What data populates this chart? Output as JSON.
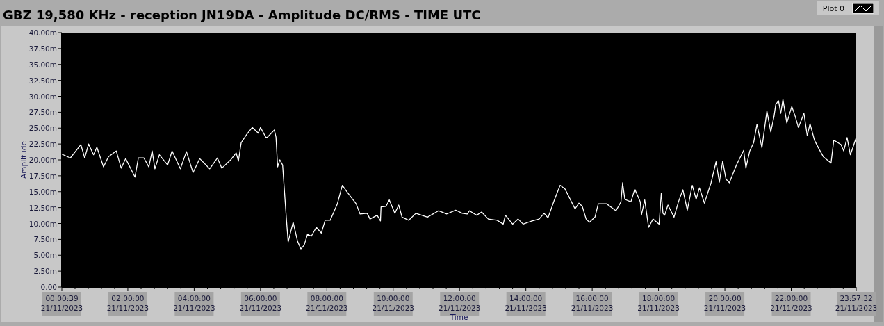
{
  "chart_data": {
    "type": "line",
    "title": "GBZ  19,580 KHz - reception JN19DA -  Amplitude DC/RMS   - TIME UTC",
    "xlabel": "Time",
    "ylabel": "Amplitude",
    "legend": "top right",
    "grid": false,
    "xlim": [
      "2023-11-21T00:00:39",
      "2023-11-21T23:57:32"
    ],
    "ylim": [
      0,
      40
    ],
    "xticks": [
      {
        "value": "2023-11-21T00:00:39",
        "label": "00:00:39\n21/11/2023"
      },
      {
        "value": "2023-11-21T02:00",
        "label": "02:00:00\n21/11/2023"
      },
      {
        "value": "2023-11-21T04:00",
        "label": "04:00:00\n21/11/2023"
      },
      {
        "value": "2023-11-21T06:00",
        "label": "06:00:00\n21/11/2023"
      },
      {
        "value": "2023-11-21T08:00",
        "label": "08:00:00\n21/11/2023"
      },
      {
        "value": "2023-11-21T10:00",
        "label": "10:00:00\n21/11/2023"
      },
      {
        "value": "2023-11-21T12:00",
        "label": "12:00:00\n21/11/2023"
      },
      {
        "value": "2023-11-21T14:00",
        "label": "14:00:00\n21/11/2023"
      },
      {
        "value": "2023-11-21T16:00",
        "label": "16:00:00\n21/11/2023"
      },
      {
        "value": "2023-11-21T18:00",
        "label": "18:00:00\n21/11/2023"
      },
      {
        "value": "2023-11-21T20:00",
        "label": "20:00:00\n21/11/2023"
      },
      {
        "value": "2023-11-21T22:00",
        "label": "22:00:00\n21/11/2023"
      },
      {
        "value": "2023-11-21T23:57:32",
        "label": "23:57:32\n21/11/2023"
      }
    ],
    "yticks": [
      {
        "value": 0,
        "label": "0.00"
      },
      {
        "value": 2.5,
        "label": "2.50m"
      },
      {
        "value": 5,
        "label": "5.00m"
      },
      {
        "value": 7.5,
        "label": "7.50m"
      },
      {
        "value": 10,
        "label": "10.00m"
      },
      {
        "value": 12.5,
        "label": "12.50m"
      },
      {
        "value": 15,
        "label": "15.00m"
      },
      {
        "value": 17.5,
        "label": "17.50m"
      },
      {
        "value": 20,
        "label": "20.00m"
      },
      {
        "value": 22.5,
        "label": "22.50m"
      },
      {
        "value": 25,
        "label": "25.00m"
      },
      {
        "value": 27.5,
        "label": "27.50m"
      },
      {
        "value": 30,
        "label": "30.00m"
      },
      {
        "value": 32.5,
        "label": "32.50m"
      },
      {
        "value": 35,
        "label": "35.00m"
      },
      {
        "value": 37.5,
        "label": "37.50m"
      },
      {
        "value": 40,
        "label": "40.00m"
      }
    ],
    "series": [
      {
        "name": "Plot 0",
        "color": "#ffffff",
        "x": [
          "2023-11-21T00:00:39",
          "2023-11-21T00:16",
          "2023-11-21T00:35",
          "2023-11-21T00:42",
          "2023-11-21T00:49",
          "2023-11-21T00:58",
          "2023-11-21T01:04",
          "2023-11-21T01:16",
          "2023-11-21T01:25",
          "2023-11-21T01:39",
          "2023-11-21T01:48",
          "2023-11-21T01:56",
          "2023-11-21T02:13",
          "2023-11-21T02:19",
          "2023-11-21T02:29",
          "2023-11-21T02:38",
          "2023-11-21T02:44",
          "2023-11-21T02:49",
          "2023-11-21T02:57",
          "2023-11-21T03:12",
          "2023-11-21T03:20",
          "2023-11-21T03:35",
          "2023-11-21T03:46",
          "2023-11-21T03:58",
          "2023-11-21T04:10",
          "2023-11-21T04:28",
          "2023-11-21T04:42",
          "2023-11-21T04:50",
          "2023-11-21T05:06",
          "2023-11-21T05:16",
          "2023-11-21T05:20",
          "2023-11-21T05:25",
          "2023-11-21T05:35",
          "2023-11-21T05:45",
          "2023-11-21T05:56",
          "2023-11-21T06:00",
          "2023-11-21T06:10",
          "2023-11-21T06:13",
          "2023-11-21T06:25",
          "2023-11-21T06:28",
          "2023-11-21T06:31",
          "2023-11-21T06:35",
          "2023-11-21T06:40",
          "2023-11-21T06:47",
          "2023-11-21T06:50",
          "2023-11-21T06:59",
          "2023-11-21T07:07",
          "2023-11-21T07:13",
          "2023-11-21T07:19",
          "2023-11-21T07:25",
          "2023-11-21T07:32",
          "2023-11-21T07:41",
          "2023-11-21T07:50",
          "2023-11-21T07:57",
          "2023-11-21T08:06",
          "2023-11-21T08:19",
          "2023-11-21T08:28",
          "2023-11-21T08:37",
          "2023-11-21T08:53",
          "2023-11-21T09:00",
          "2023-11-21T09:13",
          "2023-11-21T09:18",
          "2023-11-21T09:31",
          "2023-11-21T09:37",
          "2023-11-21T09:38",
          "2023-11-21T09:47",
          "2023-11-21T09:53",
          "2023-11-21T10:03",
          "2023-11-21T10:10",
          "2023-11-21T10:16",
          "2023-11-21T10:28",
          "2023-11-21T10:41",
          "2023-11-21T11:02",
          "2023-11-21T11:22",
          "2023-11-21T11:37",
          "2023-11-21T11:53",
          "2023-11-21T12:05",
          "2023-11-21T12:14",
          "2023-11-21T12:18",
          "2023-11-21T12:31",
          "2023-11-21T12:40",
          "2023-11-21T12:52",
          "2023-11-21T13:08",
          "2023-11-21T13:19",
          "2023-11-21T13:23",
          "2023-11-21T13:36",
          "2023-11-21T13:46",
          "2023-11-21T13:55",
          "2023-11-21T14:11",
          "2023-11-21T14:24",
          "2023-11-21T14:33",
          "2023-11-21T14:40",
          "2023-11-21T14:52",
          "2023-11-21T15:02",
          "2023-11-21T15:11",
          "2023-11-21T15:19",
          "2023-11-21T15:29",
          "2023-11-21T15:36",
          "2023-11-21T15:42",
          "2023-11-21T15:49",
          "2023-11-21T15:55",
          "2023-11-21T16:05",
          "2023-11-21T16:11",
          "2023-11-21T16:26",
          "2023-11-21T16:43",
          "2023-11-21T16:52",
          "2023-11-21T16:55",
          "2023-11-21T16:59",
          "2023-11-21T17:10",
          "2023-11-21T17:17",
          "2023-11-21T17:27",
          "2023-11-21T17:29",
          "2023-11-21T17:35",
          "2023-11-21T17:42",
          "2023-11-21T17:50",
          "2023-11-21T18:01",
          "2023-11-21T18:05",
          "2023-11-21T18:08",
          "2023-11-21T18:11",
          "2023-11-21T18:17",
          "2023-11-21T18:28",
          "2023-11-21T18:36",
          "2023-11-21T18:44",
          "2023-11-21T18:52",
          "2023-11-21T19:01",
          "2023-11-21T19:08",
          "2023-11-21T19:14",
          "2023-11-21T19:23",
          "2023-11-21T19:35",
          "2023-11-21T19:44",
          "2023-11-21T19:50",
          "2023-11-21T19:56",
          "2023-11-21T20:02",
          "2023-11-21T20:08",
          "2023-11-21T20:21",
          "2023-11-21T20:34",
          "2023-11-21T20:38",
          "2023-11-21T20:45",
          "2023-11-21T20:52",
          "2023-11-21T20:58",
          "2023-11-21T21:07",
          "2023-11-21T21:16",
          "2023-11-21T21:23",
          "2023-11-21T21:29",
          "2023-11-21T21:32",
          "2023-11-21T21:37",
          "2023-11-21T21:41",
          "2023-11-21T21:45",
          "2023-11-21T21:52",
          "2023-11-21T22:01",
          "2023-11-21T22:07",
          "2023-11-21T22:13",
          "2023-11-21T22:23",
          "2023-11-21T22:29",
          "2023-11-21T22:34",
          "2023-11-21T22:42",
          "2023-11-21T22:51",
          "2023-11-21T22:58",
          "2023-11-21T23:12",
          "2023-11-21T23:17",
          "2023-11-21T23:30",
          "2023-11-21T23:35",
          "2023-11-21T23:41",
          "2023-11-21T23:47",
          "2023-11-21T23:57:32"
        ],
        "values": [
          20.9,
          20.3,
          22.4,
          20.3,
          22.5,
          20.8,
          22.0,
          18.9,
          20.5,
          21.4,
          18.7,
          20.2,
          17.3,
          20.3,
          20.3,
          18.9,
          21.4,
          18.6,
          20.8,
          19.2,
          21.4,
          18.6,
          21.3,
          18.0,
          20.2,
          18.6,
          20.3,
          18.7,
          20.0,
          21.1,
          19.8,
          22.7,
          24.0,
          25.1,
          24.2,
          25.1,
          23.5,
          23.6,
          24.7,
          23.6,
          18.9,
          20.0,
          19.2,
          10.5,
          7.1,
          10.2,
          7.2,
          6.0,
          6.6,
          8.3,
          8.0,
          9.4,
          8.5,
          10.5,
          10.5,
          13.1,
          16.0,
          14.9,
          13.1,
          11.5,
          11.6,
          10.7,
          11.3,
          10.4,
          12.6,
          12.7,
          13.7,
          11.6,
          12.9,
          11.0,
          10.5,
          11.6,
          11.0,
          12.0,
          11.5,
          12.1,
          11.6,
          11.5,
          12.0,
          11.3,
          11.8,
          10.7,
          10.5,
          9.9,
          11.3,
          9.9,
          10.7,
          9.9,
          10.4,
          10.7,
          11.6,
          10.9,
          13.8,
          16.0,
          15.4,
          14.0,
          12.3,
          13.2,
          12.7,
          10.7,
          10.2,
          11.0,
          13.1,
          13.1,
          12.0,
          13.4,
          16.4,
          13.8,
          13.4,
          15.4,
          13.4,
          11.3,
          13.7,
          9.4,
          10.7,
          9.9,
          14.8,
          11.6,
          11.3,
          12.9,
          11.0,
          13.4,
          15.3,
          12.1,
          16.0,
          13.8,
          15.6,
          13.2,
          16.4,
          19.7,
          16.5,
          19.8,
          17.0,
          16.4,
          19.2,
          21.5,
          18.7,
          21.4,
          22.7,
          25.6,
          21.9,
          27.7,
          24.4,
          26.9,
          28.7,
          29.3,
          27.3,
          29.5,
          25.8,
          28.4,
          26.9,
          25.1,
          27.3,
          23.8,
          25.7,
          23.1,
          21.6,
          20.5,
          19.5,
          23.1,
          22.4,
          21.4,
          23.5,
          20.8,
          23.5
        ]
      }
    ]
  }
}
